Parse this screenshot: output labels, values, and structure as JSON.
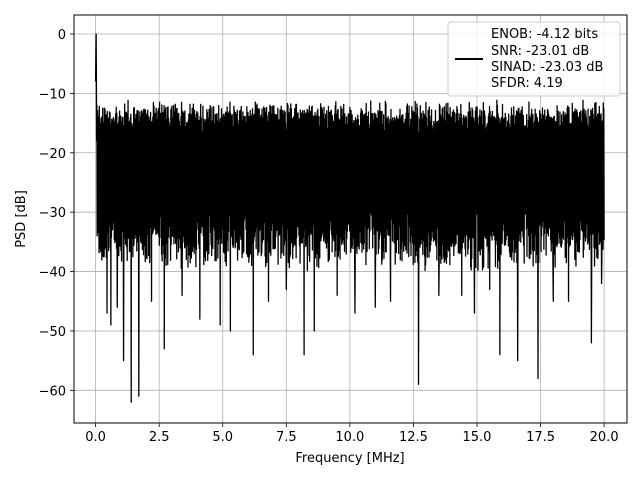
{
  "chart_data": {
    "type": "line",
    "xlabel": "Frequency [MHz]",
    "ylabel": "PSD [dB]",
    "xlim": [
      -0.85,
      20.9
    ],
    "ylim": [
      -65.5,
      3.2
    ],
    "xticks": [
      0.0,
      2.5,
      5.0,
      7.5,
      10.0,
      12.5,
      15.0,
      17.5,
      20.0
    ],
    "xtick_labels": [
      "0.0",
      "2.5",
      "5.0",
      "7.5",
      "10.0",
      "12.5",
      "15.0",
      "17.5",
      "20.0"
    ],
    "yticks": [
      0,
      -10,
      -20,
      -30,
      -40,
      -50,
      -60
    ],
    "ytick_labels": [
      "0",
      "−10",
      "−20",
      "−30",
      "−40",
      "−50",
      "−60"
    ],
    "grid": true,
    "legend": {
      "placement": "top-right",
      "lines": [
        "ENOB: -4.12 bits",
        "SNR: -23.01 dB",
        "SINAD: -23.03 dB",
        "SFDR: 4.19"
      ]
    },
    "series": [
      {
        "color": "#000000",
        "x_range": [
          0.0,
          20.0
        ],
        "peak": {
          "x": 0.02,
          "y": 0
        },
        "noise_envelope": {
          "upper_typical": [
            -14,
            -11
          ],
          "lower_typical": [
            -33,
            -40
          ]
        },
        "notable_dips": [
          {
            "x": 0.45,
            "y": -47
          },
          {
            "x": 0.6,
            "y": -49
          },
          {
            "x": 0.85,
            "y": -46
          },
          {
            "x": 1.1,
            "y": -55
          },
          {
            "x": 1.4,
            "y": -62
          },
          {
            "x": 1.7,
            "y": -61
          },
          {
            "x": 2.2,
            "y": -45
          },
          {
            "x": 2.7,
            "y": -53
          },
          {
            "x": 3.4,
            "y": -44
          },
          {
            "x": 4.1,
            "y": -48
          },
          {
            "x": 4.9,
            "y": -49
          },
          {
            "x": 5.3,
            "y": -50
          },
          {
            "x": 6.2,
            "y": -54
          },
          {
            "x": 6.8,
            "y": -45
          },
          {
            "x": 7.5,
            "y": -43
          },
          {
            "x": 8.2,
            "y": -54
          },
          {
            "x": 8.6,
            "y": -50
          },
          {
            "x": 9.5,
            "y": -44
          },
          {
            "x": 10.2,
            "y": -47
          },
          {
            "x": 11.0,
            "y": -46
          },
          {
            "x": 11.6,
            "y": -45
          },
          {
            "x": 12.7,
            "y": -59
          },
          {
            "x": 13.5,
            "y": -44
          },
          {
            "x": 14.4,
            "y": -44
          },
          {
            "x": 14.9,
            "y": -47
          },
          {
            "x": 15.5,
            "y": -43
          },
          {
            "x": 15.9,
            "y": -54
          },
          {
            "x": 16.6,
            "y": -55
          },
          {
            "x": 17.4,
            "y": -58
          },
          {
            "x": 18.0,
            "y": -45
          },
          {
            "x": 18.6,
            "y": -45
          },
          {
            "x": 19.5,
            "y": -52
          },
          {
            "x": 19.9,
            "y": -42
          }
        ]
      }
    ]
  }
}
